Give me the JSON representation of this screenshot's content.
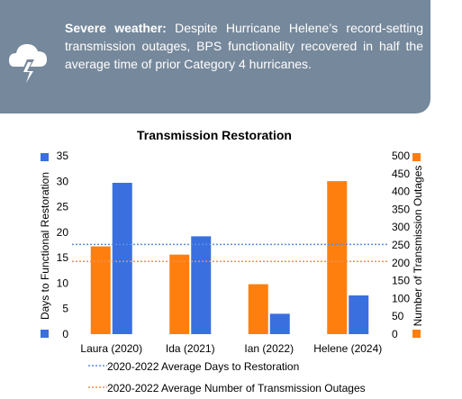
{
  "callout": {
    "bold_label": "Severe weather:",
    "text": "Despite Hurricane Helene’s record-setting transmission outages, BPS functionality recovered in half the average time of prior Category 4 hurricanes.",
    "icon": "storm-cloud-lightning-icon",
    "background_color": "#76889b"
  },
  "chart_data": {
    "type": "bar",
    "title": "Transmission Restoration",
    "categories": [
      "Laura (2020)",
      "Ida (2021)",
      "Ian (2022)",
      "Helene (2024)"
    ],
    "series": [
      {
        "axis": "right",
        "color": "#ff7f0e",
        "values": [
          246,
          223,
          140,
          429
        ]
      },
      {
        "axis": "left",
        "color": "#3a6fe0",
        "values": [
          29.7,
          19.2,
          4,
          7.6
        ]
      }
    ],
    "ylabel_left": "Days to Functional Restoration",
    "ylabel_right": "Number of Transmission Outages",
    "ylim_left": [
      0,
      35
    ],
    "ylim_right": [
      0,
      500
    ],
    "yticks_left": [
      0,
      5,
      10,
      15,
      20,
      25,
      30,
      35
    ],
    "yticks_right": [
      0,
      50,
      100,
      150,
      200,
      250,
      300,
      350,
      400,
      450,
      500
    ],
    "reference_lines": [
      {
        "label": "2020-2022 Average Days to Restoration",
        "axis": "left",
        "value": 17.6,
        "color": "#5b8fd9"
      },
      {
        "label": "2020-2022 Average Number of Transmission Outages",
        "axis": "right",
        "value": 204,
        "color": "#f28c50"
      }
    ],
    "grid": false,
    "legend_position": "bottom"
  }
}
